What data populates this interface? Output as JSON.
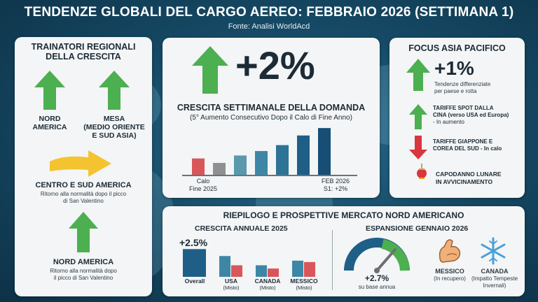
{
  "header": {
    "title": "TENDENZE GLOBALI DEL CARGO AEREO: FEBBRAIO 2026 (SETTIMANA 1)",
    "source": "Fonte: Analisi WorldAcd"
  },
  "regional": {
    "heading_line1": "TRAINATORI REGIONALI",
    "heading_line2": "DELLA CRESCITA",
    "na_top": [
      "NORD",
      "AMERICA"
    ],
    "mesa": [
      "MESA",
      "(MEDIO ORIENTE",
      "E SUD ASIA)"
    ],
    "csa_title": "CENTRO E SUD AMERICA",
    "csa_desc": [
      "Ritorno alla normalità dopo il picco",
      "di San Valentino"
    ],
    "na_bottom_title": "NORD AMERICA",
    "na_bottom_desc": [
      "Ritorno alla normalità dopo",
      "il picco di San Valentino"
    ]
  },
  "demand": {
    "big_value": "+2%",
    "title": "CRESCITA SETTIMANALE DELLA DOMANDA",
    "subtitle": "(5° Aumento Consecutivo Dopo il Calo di Fine Anno)",
    "left_label": [
      "Calo",
      "Fine 2025"
    ],
    "right_label": [
      "FEB 2026",
      "S1: +2%"
    ]
  },
  "chart_data": {
    "type": "bar",
    "categories": [
      "",
      "",
      "",
      "",
      "",
      "",
      ""
    ],
    "values": [
      22,
      16,
      26,
      32,
      40,
      53,
      63
    ],
    "colors": [
      "#d9575a",
      "#8f9092",
      "#5a98ad",
      "#3e86a6",
      "#2c7396",
      "#1f5f87",
      "#164e75"
    ],
    "title": "",
    "xlabel": "",
    "ylabel": ""
  },
  "asia": {
    "heading": "FOCUS ASIA PACIFICO",
    "big_value": "+1%",
    "big_desc": [
      "Tendenze differenziate",
      "per paese e rotta"
    ],
    "china": [
      "TARIFFE SPOT DALLA",
      "CINA (verso USA ed Europa)",
      "- In aumento"
    ],
    "jpkr": [
      "TARIFFE GIAPPONE E",
      "COREA DEL SUD - In calo"
    ],
    "lunar": [
      "CAPODANNO LUNARE",
      "IN AVVICINAMENTO"
    ]
  },
  "na_market": {
    "heading": "RIEPILOGO E PROSPETTIVE MERCATO NORD AMERICANO",
    "annual_heading": "CRESCITA ANNUALE 2025",
    "annual_value": "+2.5%",
    "groups": [
      {
        "label": "Overall",
        "sub": "",
        "bars": [
          {
            "value": 6,
            "color": "#1f5f87"
          }
        ]
      },
      {
        "label": "USA",
        "sub": "(Misto)",
        "bars": [
          {
            "value": 4.5,
            "color": "#3e86a6"
          },
          {
            "value": 2.5,
            "color": "#d9575a"
          }
        ]
      },
      {
        "label": "CANADA",
        "sub": "(Misto)",
        "bars": [
          {
            "value": 2.5,
            "color": "#3e86a6"
          },
          {
            "value": 1.8,
            "color": "#d9575a"
          }
        ]
      },
      {
        "label": "MESSICO",
        "sub": "(Misto)",
        "bars": [
          {
            "value": 3.5,
            "color": "#3e86a6"
          },
          {
            "value": 3.2,
            "color": "#d9575a"
          }
        ]
      }
    ],
    "jan_heading": "ESPANSIONE GENNAIO 2026",
    "gauge_value": "+2.7%",
    "gauge_desc": "su base annua",
    "mexico": [
      "MESSICO",
      "(In recupero)"
    ],
    "canada": [
      "CANADA",
      "(Impatto Tempeste",
      "Invernali)"
    ]
  },
  "colors": {
    "green": "#4caf50",
    "red": "#d9363e",
    "yellow": "#f4c430",
    "navy": "#1f5f87"
  }
}
